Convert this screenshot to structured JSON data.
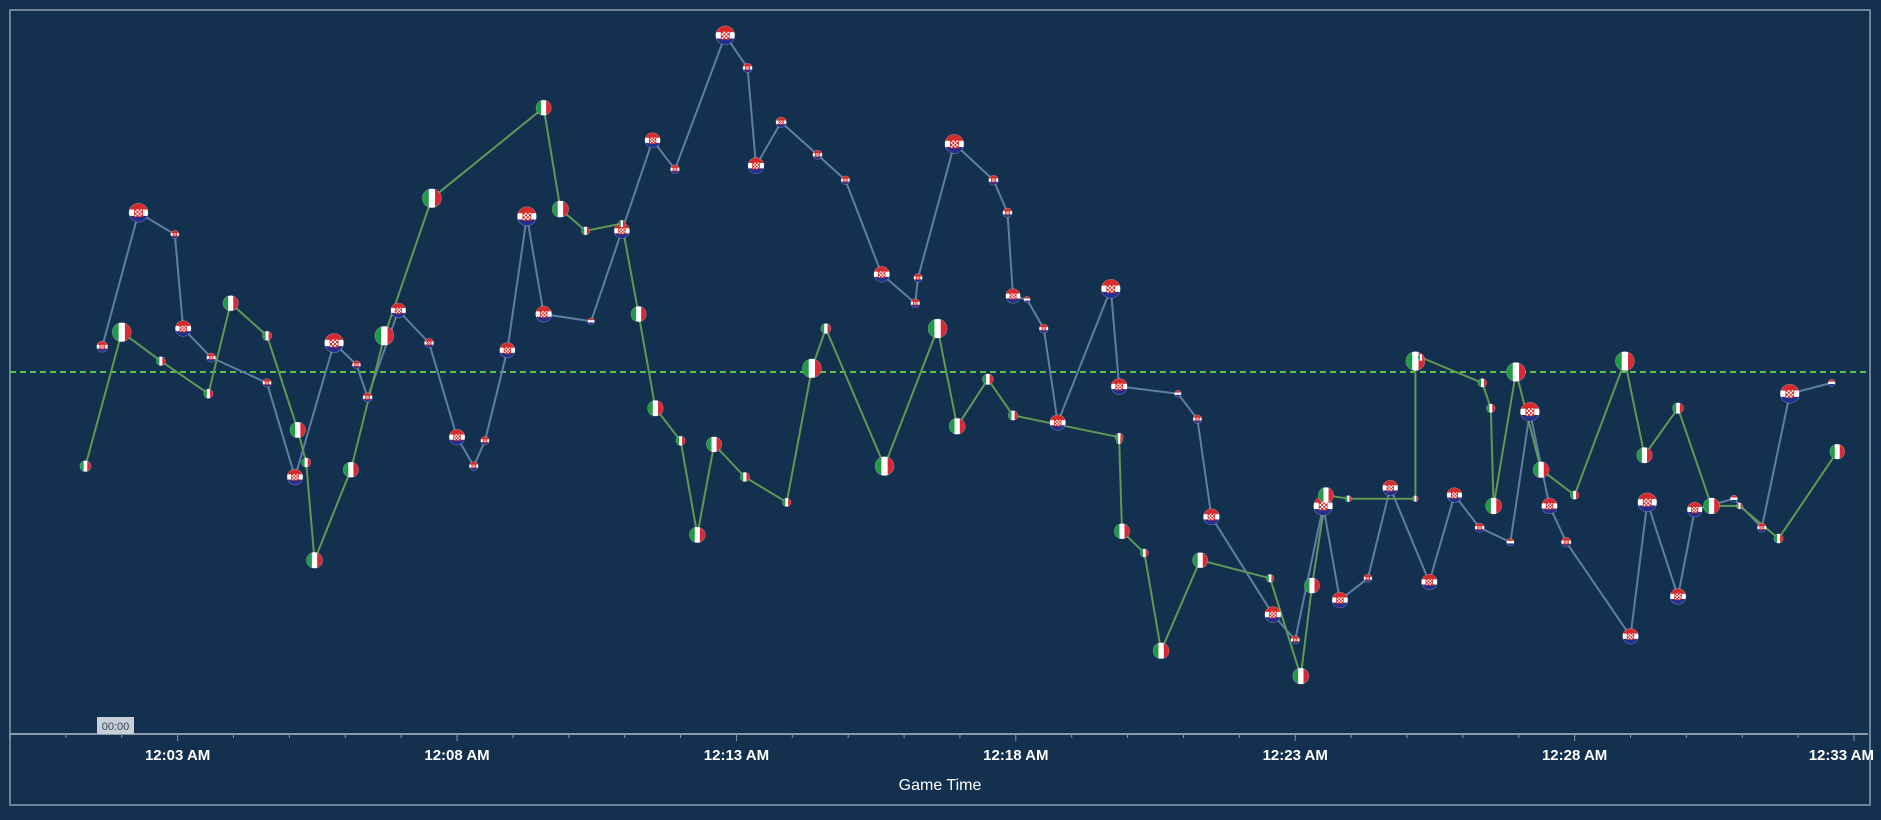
{
  "colors": {
    "background": "#14304f",
    "frame": "#6f8296",
    "axis": "#8a9aab",
    "tick_label": "#ffffff",
    "croatia_line": "#5e7fa3",
    "italy_line": "#5e9a55",
    "reference_line": "#5cc04a",
    "time_badge_bg": "#c9cfd6",
    "time_badge_text": "#33475c"
  },
  "chart_data": {
    "type": "line",
    "xlabel": "Game Time",
    "ylabel": "",
    "x_unit": "minutes after midnight",
    "xlim": [
      0.0,
      33.25
    ],
    "ylim": [
      -1.0,
      1.0
    ],
    "x_ticks": [
      3,
      8,
      13,
      18,
      23,
      28,
      33
    ],
    "x_tick_labels": [
      "12:03 AM",
      "12:08 AM",
      "12:13 AM",
      "12:18 AM",
      "12:23 AM",
      "12:28 AM",
      "12:33 AM"
    ],
    "reference_line": 0.0,
    "time_badge": "00:00",
    "series": [
      {
        "name": "Croatia",
        "marker": "croatia-flag",
        "x": [
          1.65,
          2.3,
          2.95,
          3.1,
          3.6,
          4.6,
          5.1,
          5.8,
          6.2,
          6.4,
          6.95,
          7.5,
          8.0,
          8.3,
          8.5,
          8.9,
          9.25,
          9.55,
          10.4,
          10.95,
          11.5,
          11.9,
          12.8,
          13.2,
          13.35,
          13.8,
          14.45,
          14.95,
          15.6,
          16.2,
          16.25,
          16.9,
          17.6,
          17.85,
          17.95,
          18.2,
          18.5,
          18.75,
          19.7,
          19.85,
          20.9,
          21.25,
          21.5,
          22.6,
          23.0,
          23.5,
          23.8,
          24.3,
          24.7,
          25.4,
          25.85,
          26.3,
          26.85,
          27.2,
          27.55,
          27.85,
          29.0,
          29.3,
          29.85,
          30.15,
          30.85,
          31.35,
          31.85,
          32.6
        ],
        "y": [
          0.07,
          0.44,
          0.38,
          0.12,
          0.04,
          -0.03,
          -0.29,
          0.08,
          0.02,
          -0.07,
          0.17,
          0.08,
          -0.18,
          -0.26,
          -0.19,
          0.06,
          0.43,
          0.16,
          0.14,
          0.39,
          0.64,
          0.56,
          0.93,
          0.84,
          0.57,
          0.69,
          0.6,
          0.53,
          0.27,
          0.19,
          0.26,
          0.63,
          0.53,
          0.44,
          0.21,
          0.2,
          0.12,
          -0.14,
          0.23,
          -0.04,
          -0.06,
          -0.13,
          -0.4,
          -0.67,
          -0.74,
          -0.37,
          -0.63,
          -0.57,
          -0.32,
          -0.58,
          -0.34,
          -0.43,
          -0.47,
          -0.11,
          -0.37,
          -0.47,
          -0.73,
          -0.36,
          -0.62,
          -0.38,
          -0.35,
          -0.43,
          -0.06,
          -0.03
        ]
      },
      {
        "name": "Italy",
        "marker": "italy-flag",
        "x": [
          1.35,
          2.0,
          2.7,
          3.55,
          3.95,
          4.6,
          5.15,
          5.3,
          5.45,
          6.1,
          6.7,
          7.55,
          9.55,
          9.85,
          10.3,
          10.95,
          11.25,
          11.55,
          12.0,
          12.3,
          12.6,
          13.15,
          13.9,
          14.35,
          14.6,
          15.65,
          16.6,
          16.95,
          17.5,
          17.95,
          19.85,
          19.85,
          19.9,
          20.3,
          20.6,
          21.3,
          22.55,
          23.1,
          23.3,
          23.55,
          23.95,
          25.15,
          25.15,
          25.25,
          26.35,
          26.5,
          26.55,
          26.95,
          27.4,
          28.0,
          28.9,
          29.25,
          29.85,
          30.45,
          30.95,
          30.95,
          31.65,
          32.7
        ],
        "y": [
          -0.26,
          0.11,
          0.03,
          -0.06,
          0.19,
          0.1,
          -0.16,
          -0.25,
          -0.52,
          -0.27,
          0.1,
          0.48,
          0.73,
          0.45,
          0.39,
          0.41,
          0.16,
          -0.1,
          -0.19,
          -0.45,
          -0.2,
          -0.29,
          -0.36,
          0.01,
          0.12,
          -0.26,
          0.12,
          -0.15,
          -0.02,
          -0.12,
          -0.18,
          -0.19,
          -0.44,
          -0.5,
          -0.77,
          -0.52,
          -0.57,
          -0.84,
          -0.59,
          -0.34,
          -0.35,
          -0.35,
          0.03,
          0.04,
          -0.03,
          -0.1,
          -0.37,
          0.0,
          -0.27,
          -0.34,
          0.03,
          -0.23,
          -0.1,
          -0.37,
          -0.37,
          -0.37,
          -0.46,
          -0.22
        ]
      }
    ]
  }
}
